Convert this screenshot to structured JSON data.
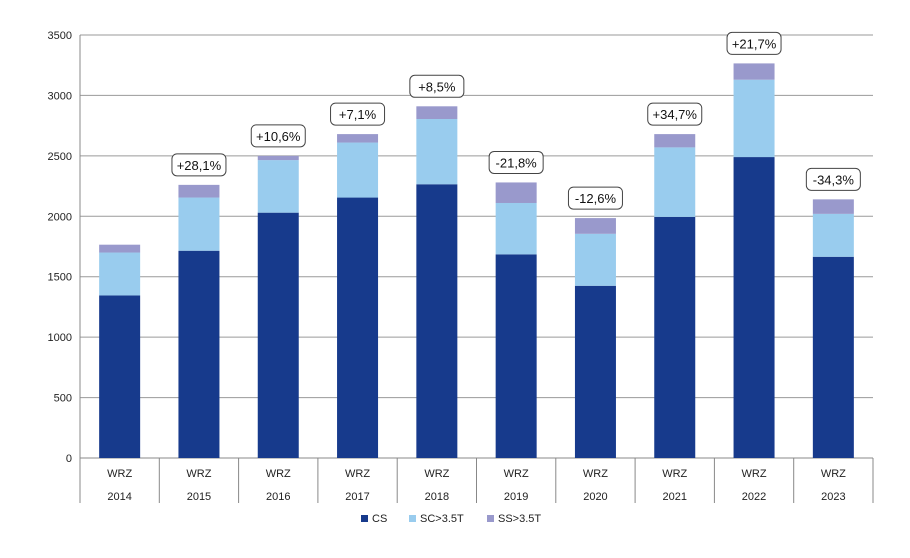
{
  "chart_data": {
    "type": "bar",
    "stacked": true,
    "categories": [
      "2014",
      "2015",
      "2016",
      "2017",
      "2018",
      "2019",
      "2020",
      "2021",
      "2022",
      "2023"
    ],
    "category_group_label": "WRZ",
    "series": [
      {
        "name": "CS",
        "color": "#173A8C",
        "values": [
          1345,
          1715,
          2030,
          2155,
          2265,
          1685,
          1425,
          1995,
          2490,
          1665
        ]
      },
      {
        "name": "SC>3.5T",
        "color": "#99CCEE",
        "values": [
          355,
          440,
          435,
          455,
          540,
          425,
          430,
          575,
          640,
          355
        ]
      },
      {
        "name": "SS>3.5T",
        "color": "#9999CC",
        "values": [
          65,
          105,
          35,
          70,
          105,
          170,
          130,
          110,
          135,
          120
        ]
      }
    ],
    "annotations": [
      "",
      "+28,1%",
      "+10,6%",
      "+7,1%",
      "+8,5%",
      "-21,8%",
      "-12,6%",
      "+34,7%",
      "+21,7%",
      "-34,3%"
    ],
    "yticks": [
      "0",
      "500",
      "1000",
      "1500",
      "2000",
      "2500",
      "3000",
      "3500"
    ],
    "ylim": [
      0,
      3500
    ],
    "grid": true,
    "legend_position": "bottom",
    "title": "",
    "xlabel": "",
    "ylabel": ""
  }
}
